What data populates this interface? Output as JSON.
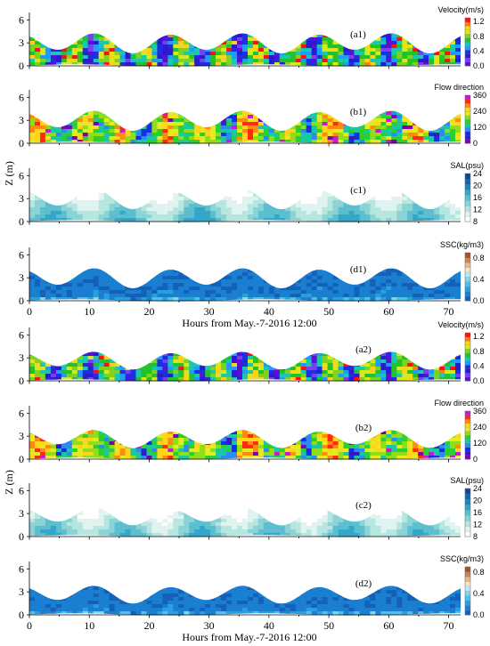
{
  "x_label": "Hours from May.-7-2016 12:00",
  "y_label": "Z (m)",
  "chart_data": [
    {
      "id": "a1",
      "type": "heatmap",
      "panel_label": "(a1)",
      "colorbar_title": "Velocity(m/s)",
      "y_ticks": [
        "0",
        "3",
        "6"
      ],
      "x_ticks": [],
      "colorbar_ticks": [
        "0.0",
        "0.4",
        "0.8",
        "1.2"
      ],
      "vmin": 0,
      "vmax": 1.3,
      "colormap": "velocity",
      "palette": [
        "#5b0fd0",
        "#7b3ff0",
        "#2a1ad0",
        "#1e2ee0",
        "#1f9bff",
        "#19c8b0",
        "#22c22a",
        "#7ed321",
        "#d8e81a",
        "#ffd11a",
        "#ff7a10",
        "#ff1010"
      ],
      "ylim": [
        0,
        6.5
      ],
      "xlim": [
        0,
        72
      ]
    },
    {
      "id": "b1",
      "type": "heatmap",
      "panel_label": "(b1)",
      "colorbar_title": "Flow direction",
      "y_ticks": [
        "0",
        "3",
        "6"
      ],
      "x_ticks": [],
      "colorbar_ticks": [
        "0",
        "120",
        "240",
        "360"
      ],
      "vmin": 0,
      "vmax": 360,
      "colormap": "direction",
      "palette": [
        "#7b00b0",
        "#3a12c8",
        "#1330e0",
        "#2a8cf0",
        "#19c8a0",
        "#2ccf30",
        "#8ede1a",
        "#e6ea20",
        "#ffd41a",
        "#ff8a10",
        "#ff2a10",
        "#c818d0"
      ],
      "ylim": [
        0,
        6.5
      ],
      "xlim": [
        0,
        72
      ]
    },
    {
      "id": "c1",
      "type": "heatmap",
      "panel_label": "(c1)",
      "colorbar_title": "SAL(psu)",
      "y_ticks": [
        "0",
        "3",
        "6"
      ],
      "x_ticks": [],
      "colorbar_ticks": [
        "8",
        "12",
        "16",
        "20",
        "24"
      ],
      "vmin": 8,
      "vmax": 24,
      "colormap": "salinity",
      "palette": [
        "#ffffff",
        "#dff3f0",
        "#b6e6e0",
        "#8ad3d6",
        "#5bbfd0",
        "#34a6c8",
        "#1f86bb",
        "#1565a8",
        "#0d4a90"
      ],
      "ylim": [
        0,
        6.5
      ],
      "xlim": [
        0,
        72
      ]
    },
    {
      "id": "d1",
      "type": "heatmap",
      "panel_label": "(d1)",
      "colorbar_title": "SSC(kg/m3)",
      "y_ticks": [
        "0",
        "3",
        "6"
      ],
      "x_ticks": [
        "0",
        "10",
        "20",
        "30",
        "40",
        "50",
        "60",
        "70"
      ],
      "colorbar_ticks": [
        "0.0",
        "0.4",
        "0.8"
      ],
      "vmin": 0,
      "vmax": 0.9,
      "colormap": "ssc",
      "palette": [
        "#1560b8",
        "#1a7fd0",
        "#2a9fe0",
        "#4fc0ea",
        "#7fd8f0",
        "#bde9f6",
        "#f3e3cf",
        "#e7b88a",
        "#c98558",
        "#a0552f"
      ],
      "ylim": [
        0,
        6.5
      ],
      "xlim": [
        0,
        72
      ]
    },
    {
      "id": "a2",
      "type": "heatmap",
      "panel_label": "(a2)",
      "colorbar_title": "Velocity(m/s)",
      "y_ticks": [
        "0",
        "3",
        "6"
      ],
      "x_ticks": [],
      "colorbar_ticks": [
        "0.0",
        "0.4",
        "0.8",
        "1.2"
      ],
      "vmin": 0,
      "vmax": 1.3,
      "colormap": "velocity",
      "palette": [
        "#5b0fd0",
        "#7b3ff0",
        "#2a1ad0",
        "#1e2ee0",
        "#1f9bff",
        "#19c8b0",
        "#22c22a",
        "#7ed321",
        "#d8e81a",
        "#ffd11a",
        "#ff7a10",
        "#ff1010"
      ],
      "ylim": [
        0,
        6.5
      ],
      "xlim": [
        0,
        72
      ]
    },
    {
      "id": "b2",
      "type": "heatmap",
      "panel_label": "(b2)",
      "colorbar_title": "Flow  direction",
      "y_ticks": [
        "0",
        "3",
        "6"
      ],
      "x_ticks": [],
      "colorbar_ticks": [
        "0",
        "120",
        "240",
        "360"
      ],
      "vmin": 0,
      "vmax": 360,
      "colormap": "direction",
      "palette": [
        "#7b00b0",
        "#3a12c8",
        "#1330e0",
        "#2a8cf0",
        "#19c8a0",
        "#2ccf30",
        "#8ede1a",
        "#e6ea20",
        "#ffd41a",
        "#ff8a10",
        "#ff2a10",
        "#c818d0"
      ],
      "ylim": [
        0,
        6.5
      ],
      "xlim": [
        0,
        72
      ]
    },
    {
      "id": "c2",
      "type": "heatmap",
      "panel_label": "(c2)",
      "colorbar_title": "SAL(psu)",
      "y_ticks": [
        "0",
        "3",
        "6"
      ],
      "x_ticks": [],
      "colorbar_ticks": [
        "8",
        "12",
        "16",
        "20",
        "24"
      ],
      "vmin": 8,
      "vmax": 24,
      "colormap": "salinity",
      "palette": [
        "#ffffff",
        "#dff3f0",
        "#b6e6e0",
        "#8ad3d6",
        "#5bbfd0",
        "#34a6c8",
        "#1f86bb",
        "#1565a8",
        "#0d4a90"
      ],
      "ylim": [
        0,
        6.5
      ],
      "xlim": [
        0,
        72
      ]
    },
    {
      "id": "d2",
      "type": "heatmap",
      "panel_label": "(d2)",
      "colorbar_title": "SSC(kg/m3)",
      "y_ticks": [
        "0",
        "3",
        "6"
      ],
      "x_ticks": [
        "0",
        "10",
        "20",
        "30",
        "40",
        "50",
        "60",
        "70"
      ],
      "colorbar_ticks": [
        "0.0",
        "0.4",
        "0.8"
      ],
      "vmin": 0,
      "vmax": 0.9,
      "colormap": "ssc",
      "palette": [
        "#1560b8",
        "#1a7fd0",
        "#2a9fe0",
        "#4fc0ea",
        "#7fd8f0",
        "#bde9f6",
        "#f3e3cf",
        "#e7b88a",
        "#c98558",
        "#a0552f"
      ],
      "ylim": [
        0,
        6.5
      ],
      "xlim": [
        0,
        72
      ]
    }
  ]
}
